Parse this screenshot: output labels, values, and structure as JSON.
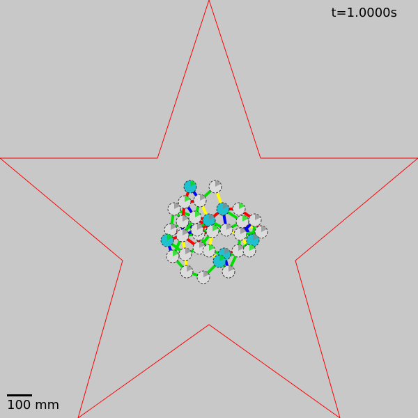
{
  "readout": {
    "time_label": "t=1.0000s"
  },
  "scale": {
    "label": "100 mm"
  },
  "colors": {
    "background": "#c8c8c8",
    "boundary": "#ff0000",
    "spring_blue": "#0000ff",
    "spring_green": "#00e000",
    "spring_yellow": "#ffff00",
    "spring_red": "#ff0000",
    "particle_fill": "#dcdcdc",
    "particle_accent": "#20c0d0"
  }
}
